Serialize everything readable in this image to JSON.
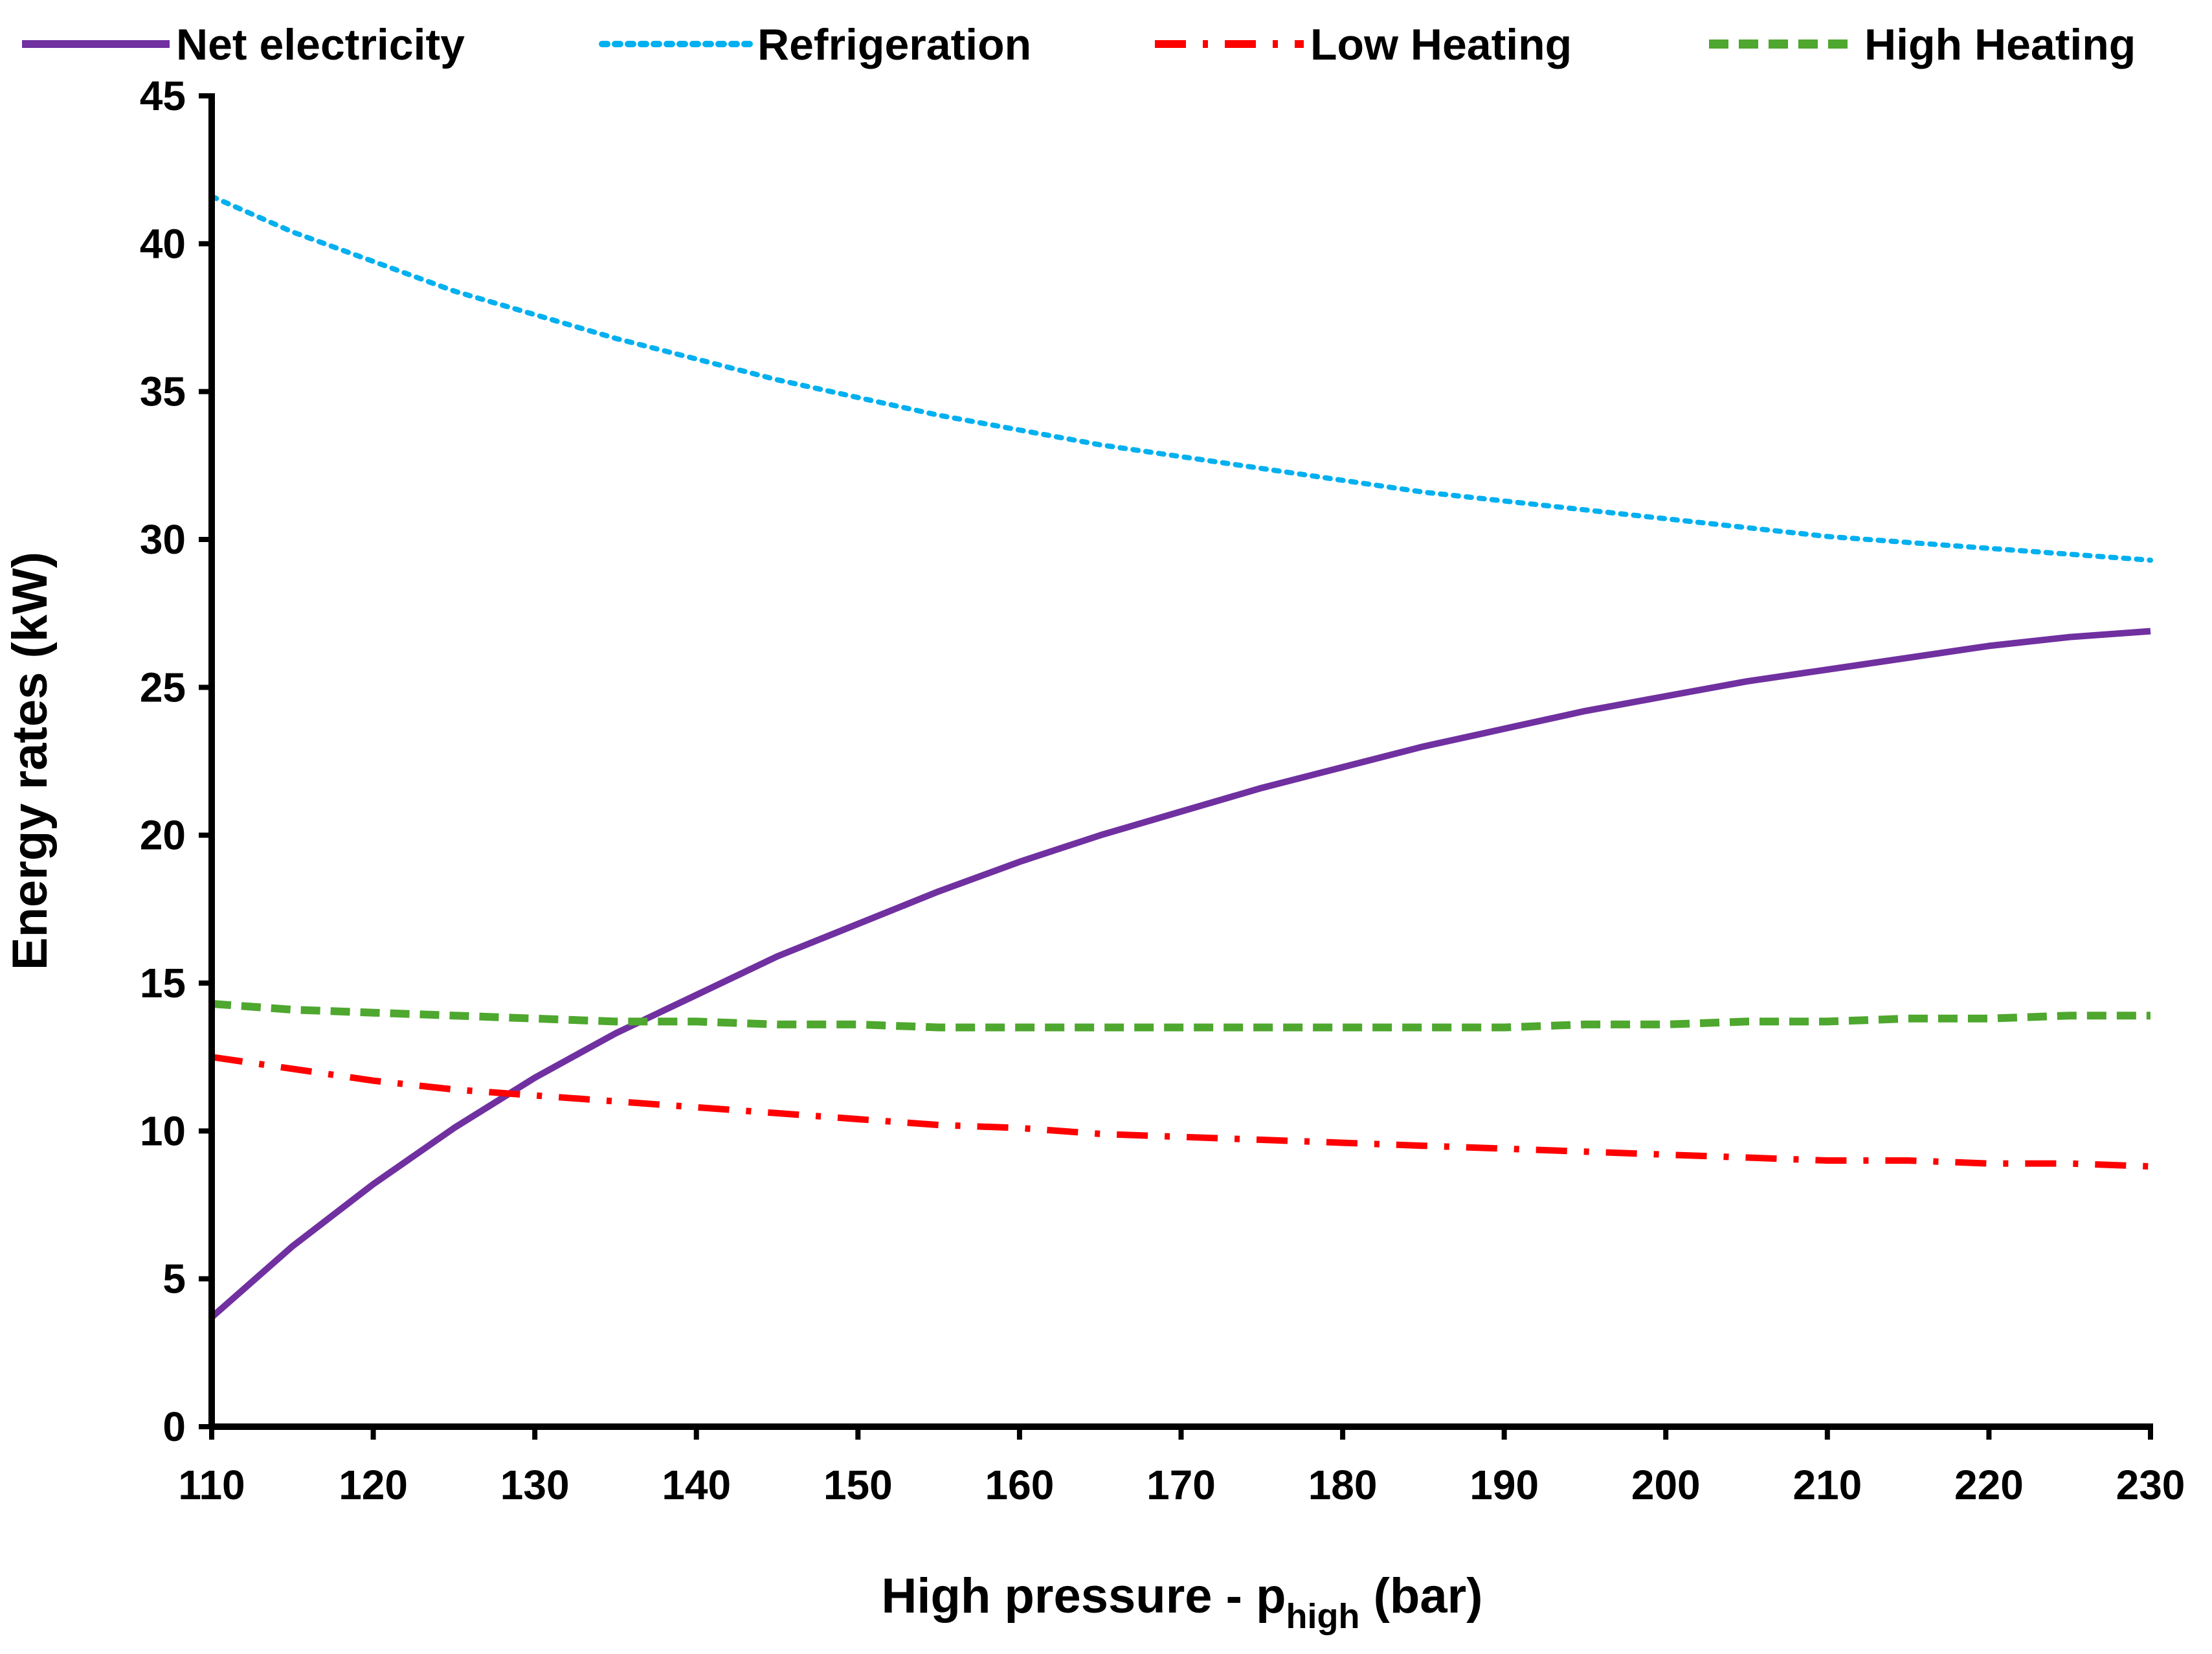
{
  "chart_data": {
    "type": "line",
    "title": "",
    "xlabel": {
      "main": "High pressure - p",
      "subscript": "high",
      "suffix": " (bar)"
    },
    "ylabel": "Energy rates (kW)",
    "xlim": [
      110,
      230
    ],
    "ylim": [
      0,
      45
    ],
    "x_ticks": [
      110,
      120,
      130,
      140,
      150,
      160,
      170,
      180,
      190,
      200,
      210,
      220,
      230
    ],
    "y_ticks": [
      0,
      5,
      10,
      15,
      20,
      25,
      30,
      35,
      40,
      45
    ],
    "grid": false,
    "legend_position": "top",
    "x": [
      110,
      115,
      120,
      125,
      130,
      135,
      140,
      145,
      150,
      155,
      160,
      165,
      170,
      175,
      180,
      185,
      190,
      195,
      200,
      205,
      210,
      215,
      220,
      225,
      230
    ],
    "series": [
      {
        "name": "Net electricity",
        "color": "#7030A0",
        "style": "solid",
        "values": [
          3.7,
          6.1,
          8.2,
          10.1,
          11.8,
          13.3,
          14.6,
          15.9,
          17.0,
          18.1,
          19.1,
          20.0,
          20.8,
          21.6,
          22.3,
          23.0,
          23.6,
          24.2,
          24.7,
          25.2,
          25.6,
          26.0,
          26.4,
          26.7,
          26.9
        ]
      },
      {
        "name": "Refrigeration",
        "color": "#00B0F0",
        "style": "dotted",
        "values": [
          41.6,
          40.4,
          39.4,
          38.4,
          37.6,
          36.8,
          36.1,
          35.4,
          34.8,
          34.2,
          33.7,
          33.2,
          32.8,
          32.4,
          32.0,
          31.6,
          31.3,
          31.0,
          30.7,
          30.4,
          30.1,
          29.9,
          29.7,
          29.5,
          29.3
        ]
      },
      {
        "name": "Low Heating",
        "color": "#FF0000",
        "style": "dashdot",
        "values": [
          12.5,
          12.1,
          11.7,
          11.4,
          11.2,
          11.0,
          10.8,
          10.6,
          10.4,
          10.2,
          10.1,
          9.9,
          9.8,
          9.7,
          9.6,
          9.5,
          9.4,
          9.3,
          9.2,
          9.1,
          9.0,
          9.0,
          8.9,
          8.9,
          8.8
        ]
      },
      {
        "name": "High Heating",
        "color": "#4EA72E",
        "style": "dashed",
        "values": [
          14.3,
          14.1,
          14.0,
          13.9,
          13.8,
          13.7,
          13.7,
          13.6,
          13.6,
          13.5,
          13.5,
          13.5,
          13.5,
          13.5,
          13.5,
          13.5,
          13.5,
          13.6,
          13.6,
          13.7,
          13.7,
          13.8,
          13.8,
          13.9,
          13.9
        ]
      }
    ]
  }
}
